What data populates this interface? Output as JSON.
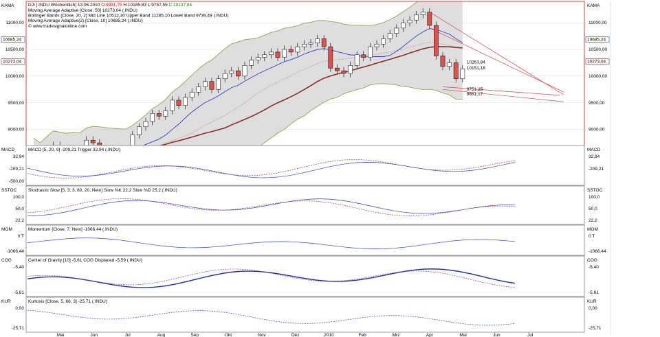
{
  "main": {
    "title": "DJI [.INDU Wöchentlich] 13.06.2010",
    "ohlc": {
      "o": "O:9931,75",
      "h": "H:10185,83",
      "l": "L:9757,55",
      "c": "C:10137,84"
    },
    "indicators": [
      "Moving Average Adaptive [Close, 50] 10273,04 (.INDU)",
      "Bollinger Bands [Close, 20, 2] Mid Line 10512,30 Upper Band 11285,10 Lower Band 9739,49 (.INDU)",
      "Moving Average Adaptive(2) [Close, 10] 10685,24 (.INDU)"
    ],
    "url": "© www.tradesignalonline.com",
    "corner_label": "KAMA",
    "y_ticks": [
      "11000,00",
      "10500,00",
      "10000,00",
      "9500,00",
      "9000,00"
    ],
    "left_badges": [
      "10685,24",
      "10273,04"
    ],
    "annotations": [
      "10263,84",
      "10151,18",
      "9751,25",
      "9661,17"
    ]
  },
  "panels": [
    {
      "id": "macd",
      "corner": "MACD",
      "legend": "MACD [5, 20, 9] -209,21 Trigger 32,94 (.INDU)",
      "left_ticks": [
        "32,94",
        "-209,21",
        "-500,00"
      ],
      "right_ticks": [
        "32,94",
        "-209,21"
      ]
    },
    {
      "id": "sstoc",
      "corner": "SSTOC",
      "legend": "Stochastic Slow [5, 3, 3, 80, 20, Nein] Slow %K 22,2 Slow %D 25,2 (.INDU)",
      "left_ticks": [
        "100,0",
        "50,0",
        "22,2"
      ],
      "right_ticks": [
        "100,0",
        "50,0",
        "22,2"
      ]
    },
    {
      "id": "mom",
      "corner": "MOM",
      "legend": "Momentum [Close, 7, Nein] -1066,44 (.INDU)",
      "left_ticks": [
        "0 T",
        "-1066,44"
      ],
      "right_ticks": [
        "0 T",
        "-1066,44"
      ]
    },
    {
      "id": "cog",
      "corner": "COG",
      "legend": "Center of Gravity [10] -5,61 COG Displaced -5,59 (.INDU)",
      "left_ticks": [
        "-5,40",
        "-5,61"
      ],
      "right_ticks": [
        "-5,40",
        "-5,61"
      ]
    },
    {
      "id": "kur",
      "corner": "KUR",
      "legend": "Kurtosis [Close, 5, 66, 3] -25,71 (.INDU)",
      "left_ticks": [
        "0,00",
        "-25,71"
      ],
      "right_ticks": [
        "0,00",
        "-25,71"
      ]
    }
  ],
  "x_labels": [
    "Mai",
    "Jun",
    "Jul",
    "Aug",
    "Sep",
    "Okt",
    "Nov",
    "Dez",
    "2010",
    "Feb",
    "Mrz",
    "Apr",
    "Mai",
    "Jun",
    "Jul"
  ],
  "colors": {
    "up": "#ffffff",
    "down": "#d9534f",
    "band_fill": "#d6d6d6",
    "band_line": "#8a9a3a",
    "ma50": "#8b2c2c",
    "ma10": "#2a3fd0",
    "mid": "#a05050",
    "accent": "#d04040"
  },
  "chart_data": {
    "type": "candlestick",
    "x": [
      "2009-05",
      "2009-06",
      "2009-07",
      "2009-08",
      "2009-09",
      "2009-10",
      "2009-11",
      "2009-12",
      "2010-01",
      "2010-02",
      "2010-03",
      "2010-04",
      "2010-05",
      "2010-06"
    ],
    "y_range": [
      8700,
      11400
    ],
    "weekly_close": [
      8400,
      8500,
      8600,
      8700,
      8550,
      8450,
      8300,
      8550,
      8800,
      8750,
      8600,
      8500,
      8450,
      8400,
      8600,
      8900,
      9050,
      9150,
      9300,
      9250,
      9350,
      9550,
      9450,
      9600,
      9700,
      9800,
      9900,
      9750,
      9950,
      10050,
      10100,
      10000,
      10200,
      10300,
      10350,
      10400,
      10450,
      10350,
      10500,
      10450,
      10550,
      10600,
      10620,
      10700,
      10550,
      10150,
      10100,
      10050,
      10200,
      10400,
      10350,
      10550,
      10600,
      10700,
      10800,
      10900,
      11000,
      11050,
      11150,
      11200,
      10950,
      10380,
      10180,
      10250,
      9950,
      10137.84
    ],
    "series": [
      {
        "name": "Moving Average Adaptive [Close, 50]",
        "last": 10273.04
      },
      {
        "name": "Moving Average Adaptive(2) [Close, 10]",
        "last": 10685.24
      },
      {
        "name": "Bollinger Upper Band",
        "last": 11285.1
      },
      {
        "name": "Bollinger Mid Line",
        "last": 10512.3
      },
      {
        "name": "Bollinger Lower Band",
        "last": 9739.49
      }
    ]
  }
}
